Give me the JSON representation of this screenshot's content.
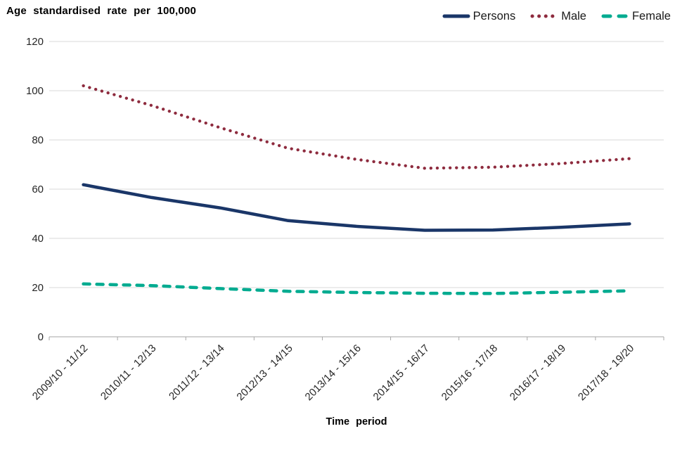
{
  "chart_data": {
    "type": "line",
    "title": "Age standardised rate per 100,000",
    "xlabel": "Time period",
    "ylabel": "",
    "ylim": [
      0,
      120
    ],
    "yticks": [
      0,
      20,
      40,
      60,
      80,
      100,
      120
    ],
    "grid": "horizontal",
    "legend_position": "top-right",
    "categories": [
      "2009/10 - 11/12",
      "2010/11 - 12/13",
      "2011/12 - 13/14",
      "2012/13 - 14/15",
      "2013/14 - 15/16",
      "2014/15 - 16/17",
      "2015/16 - 17/18",
      "2016/17 - 18/19",
      "2017/18 - 19/20"
    ],
    "series": [
      {
        "name": "Persons",
        "color": "#1a3668",
        "line_style": "solid",
        "values": [
          61.8,
          56.6,
          52.4,
          47.2,
          44.9,
          43.3,
          43.4,
          44.5,
          45.9
        ]
      },
      {
        "name": "Male",
        "color": "#8e2b3e",
        "line_style": "dotted",
        "values": [
          102.0,
          94.0,
          85.0,
          76.6,
          72.1,
          68.5,
          68.9,
          70.4,
          72.4
        ]
      },
      {
        "name": "Female",
        "color": "#00ab90",
        "line_style": "dashed",
        "values": [
          21.5,
          20.8,
          19.6,
          18.5,
          18.0,
          17.7,
          17.6,
          18.1,
          18.7
        ]
      }
    ],
    "colors": {
      "gridline": "#d9d9d9",
      "axis_line": "#a6a6a6",
      "tick_label": "#262626"
    }
  }
}
